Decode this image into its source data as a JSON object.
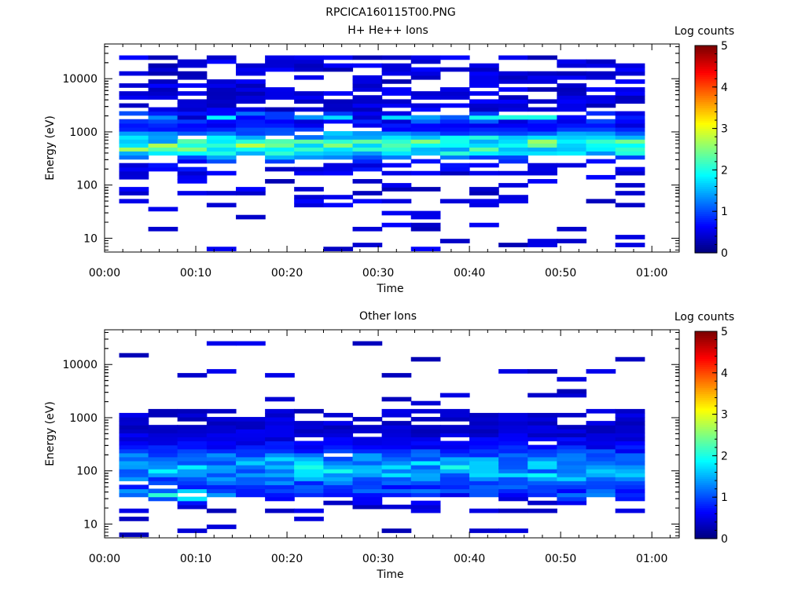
{
  "figure_title": "RPCICA160115T00.PNG",
  "chart_data": [
    {
      "type": "heatmap",
      "title": "H+ He++ Ions",
      "xlabel": "Time",
      "ylabel": "Energy (eV)",
      "x_ticks": [
        "00:00",
        "00:10",
        "00:20",
        "00:30",
        "00:40",
        "00:50",
        "01:00"
      ],
      "x_range_minutes": [
        0,
        63
      ],
      "y_scale": "log",
      "y_ticks": [
        "10",
        "100",
        "1000",
        "10000"
      ],
      "y_range": [
        5.5,
        45000
      ],
      "colorbar": {
        "label": "Log counts",
        "ticks": [
          "0",
          "1",
          "2",
          "3",
          "4",
          "5"
        ],
        "range": [
          0,
          5
        ]
      },
      "time_bins_minutes": [
        3.2,
        6.4,
        9.6,
        12.8,
        16.0,
        19.2,
        22.4,
        25.6,
        28.8,
        32.0,
        35.2,
        38.4,
        41.6,
        44.8,
        48.0,
        51.2,
        54.4,
        57.6
      ],
      "grid": false,
      "legend": "none",
      "colormap": "jet"
    },
    {
      "type": "heatmap",
      "title": "Other Ions",
      "xlabel": "Time",
      "ylabel": "Energy (eV)",
      "x_ticks": [
        "00:00",
        "00:10",
        "00:20",
        "00:30",
        "00:40",
        "00:50",
        "01:00"
      ],
      "x_range_minutes": [
        0,
        63
      ],
      "y_scale": "log",
      "y_ticks": [
        "10",
        "100",
        "1000",
        "10000"
      ],
      "y_range": [
        5.5,
        45000
      ],
      "colorbar": {
        "label": "Log counts",
        "ticks": [
          "0",
          "1",
          "2",
          "3",
          "4",
          "5"
        ],
        "range": [
          0,
          5
        ]
      },
      "time_bins_minutes": [
        3.2,
        6.4,
        9.6,
        12.8,
        16.0,
        19.2,
        22.4,
        25.6,
        28.8,
        32.0,
        35.2,
        38.4,
        41.6,
        44.8,
        48.0,
        51.2,
        54.4,
        57.6
      ],
      "grid": false,
      "legend": "none",
      "colormap": "jet"
    }
  ]
}
